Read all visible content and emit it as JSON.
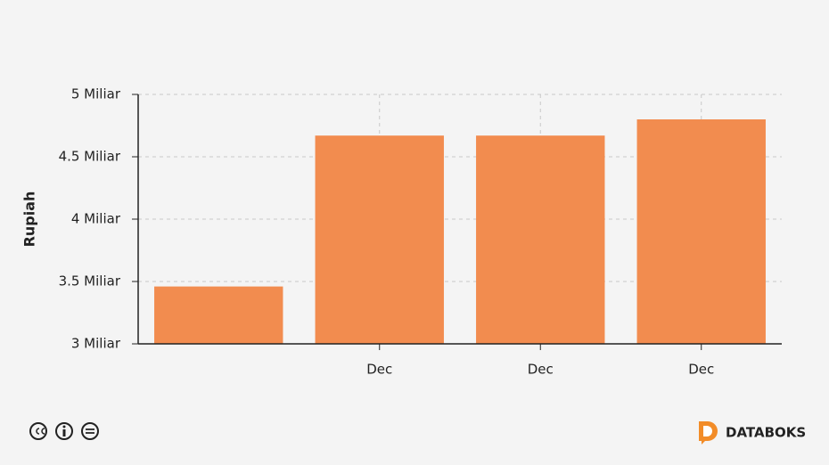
{
  "chart_data": {
    "type": "bar",
    "y_label": "Rupiah",
    "categories": [
      null,
      "Dec",
      "Dec",
      "Dec"
    ],
    "values": [
      3460000000,
      4670000000,
      4670000000,
      4800000000
    ],
    "color": "#f28c4f",
    "ylim": [
      3000000000,
      5000000000
    ],
    "yticks": [
      {
        "value": 3000000000,
        "label": "3 Miliar"
      },
      {
        "value": 3500000000,
        "label": "3.5 Miliar"
      },
      {
        "value": 4000000000,
        "label": "4 Miliar"
      },
      {
        "value": 4500000000,
        "label": "4.5 Miliar"
      },
      {
        "value": 5000000000,
        "label": "5 Miliar"
      }
    ],
    "grid": true
  },
  "footer": {
    "brand": "DATABOKS"
  }
}
